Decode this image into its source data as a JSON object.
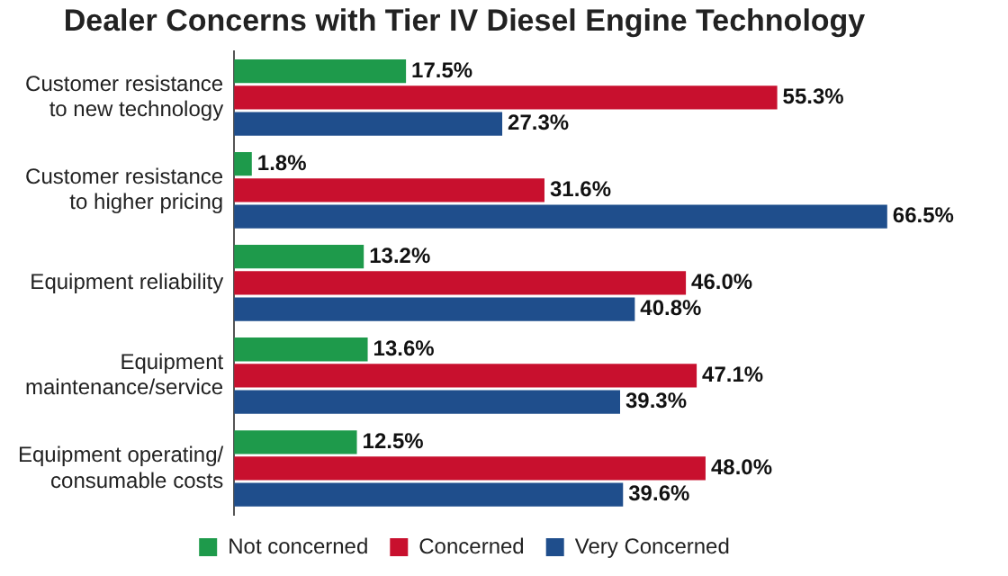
{
  "chart_data": {
    "type": "bar",
    "orientation": "horizontal",
    "title": "Dealer Concerns with Tier IV Diesel Engine Technology",
    "categories": [
      "Customer resistance\nto new technology",
      "Customer resistance\nto higher pricing",
      "Equipment reliability",
      "Equipment\nmaintenance/service",
      "Equipment operating/\nconsumable costs"
    ],
    "series": [
      {
        "name": "Not concerned",
        "color": "#1e9a4b",
        "values": [
          17.5,
          1.8,
          13.2,
          13.6,
          12.5
        ],
        "value_labels": [
          "17.5%",
          "1.8%",
          "13.2%",
          "13.6%",
          "12.5%"
        ]
      },
      {
        "name": "Concerned",
        "color": "#c8102e",
        "values": [
          55.3,
          31.6,
          46.0,
          47.1,
          48.0
        ],
        "value_labels": [
          "55.3%",
          "31.6%",
          "46.0%",
          "47.1%",
          "48.0%"
        ]
      },
      {
        "name": "Very Concerned",
        "color": "#1f4e8c",
        "values": [
          27.3,
          66.5,
          40.8,
          39.3,
          39.6
        ],
        "value_labels": [
          "27.3%",
          "66.5%",
          "40.8%",
          "39.3%",
          "39.6%"
        ]
      }
    ],
    "legend": "bottom",
    "grid": false
  }
}
